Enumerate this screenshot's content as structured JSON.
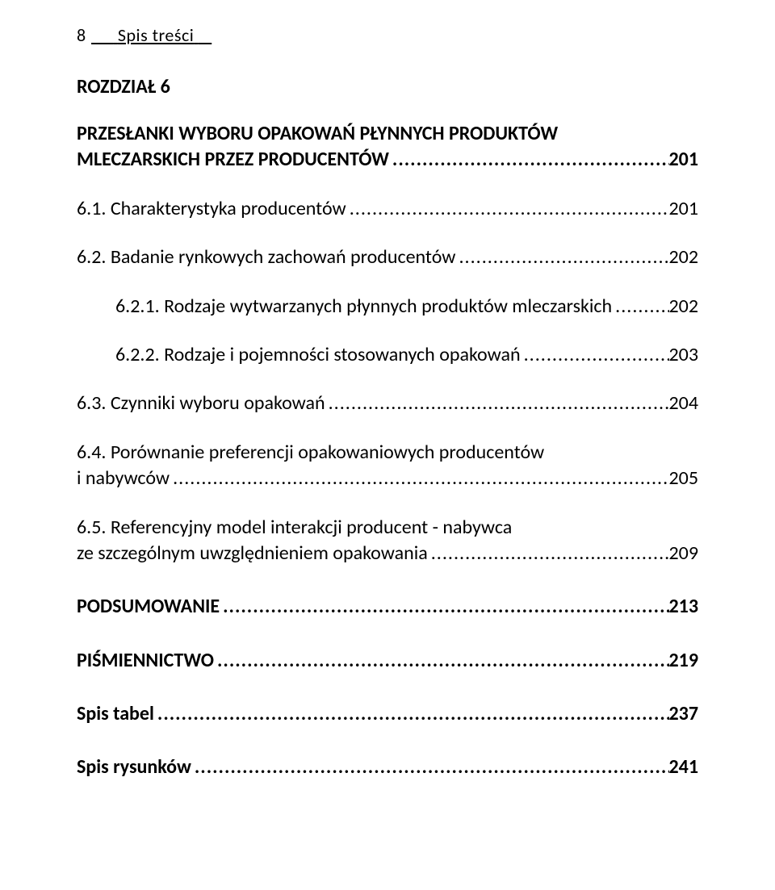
{
  "header": {
    "page_number": "8",
    "running_title": "Spis treści"
  },
  "chapter": {
    "label": "ROZDZIAŁ 6",
    "title_line1": "PRZESŁANKI WYBORU OPAKOWAŃ PŁYNNYCH PRODUKTÓW",
    "title_line2": "MLECZARSKICH PRZEZ PRODUCENTÓW",
    "page": "201"
  },
  "entries": [
    {
      "title": "6.1. Charakterystyka producentów",
      "page": "201",
      "indent": false
    },
    {
      "title": "6.2. Badanie rynkowych zachowań producentów",
      "page": "202",
      "indent": false
    },
    {
      "title": "6.2.1. Rodzaje wytwarzanych płynnych produktów mleczarskich",
      "page": "202",
      "indent": true
    },
    {
      "title": "6.2.2. Rodzaje i pojemności stosowanych opakowań",
      "page": "203",
      "indent": true
    },
    {
      "title": "6.3. Czynniki wyboru opakowań",
      "page": "204",
      "indent": false
    }
  ],
  "entry_6_4": {
    "line1": "6.4. Porównanie preferencji opakowaniowych producentów",
    "line2": "i nabywców",
    "page": "205"
  },
  "entry_6_5": {
    "line1": "6.5. Referencyjny model interakcji producent - nabywca",
    "line2": "ze szczególnym uwzględnieniem opakowania",
    "page": "209"
  },
  "bold_entries": [
    {
      "title": "PODSUMOWANIE",
      "page": "213"
    },
    {
      "title": "PIŚMIENNICTWO",
      "page": "219"
    },
    {
      "title": "Spis tabel",
      "page": "237"
    },
    {
      "title": "Spis rysunków",
      "page": "241"
    }
  ],
  "leader_dots": "............................................................................................................................................................................................................................"
}
